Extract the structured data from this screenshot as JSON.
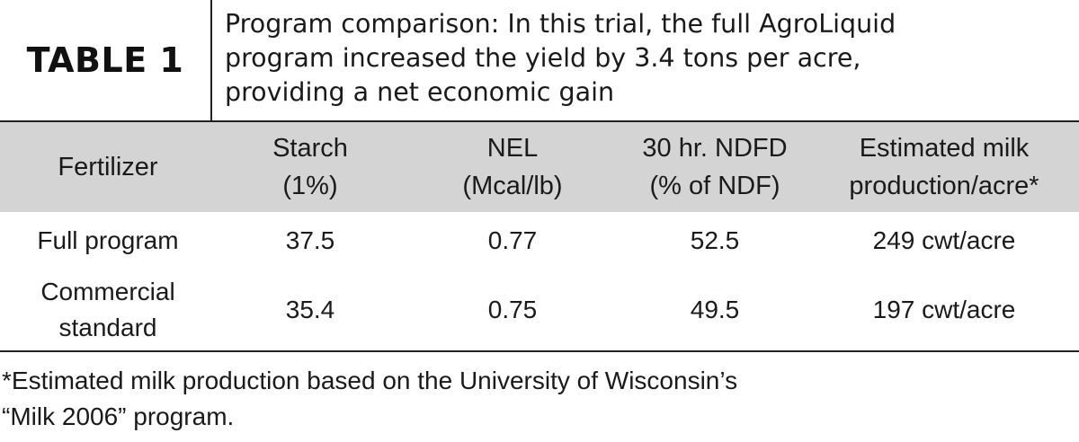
{
  "table_label": "TABLE 1",
  "caption": "Program comparison: In this trial, the full AgroLiquid\nprogram increased the yield by 3.4 tons per acre,\nproviding a net economic gain",
  "columns": [
    "Fertilizer",
    "Starch\n(1%)",
    "NEL\n(Mcal/lb)",
    "30 hr. NDFD\n(% of NDF)",
    "Estimated milk\nproduction/acre*"
  ],
  "rows": [
    {
      "fertilizer": "Full program",
      "starch": "37.5",
      "nel": "0.77",
      "ndfd": "52.5",
      "milk": "249 cwt/acre"
    },
    {
      "fertilizer": "Commercial\nstandard",
      "starch": "35.4",
      "nel": "0.75",
      "ndfd": "49.5",
      "milk": "197 cwt/acre"
    }
  ],
  "footnote": "*Estimated milk production based on the University of Wisconsin’s\n“Milk 2006” program.",
  "colors": {
    "header_bg": "#d4d4d4",
    "rule": "#222222",
    "text": "#1a1a1a"
  }
}
